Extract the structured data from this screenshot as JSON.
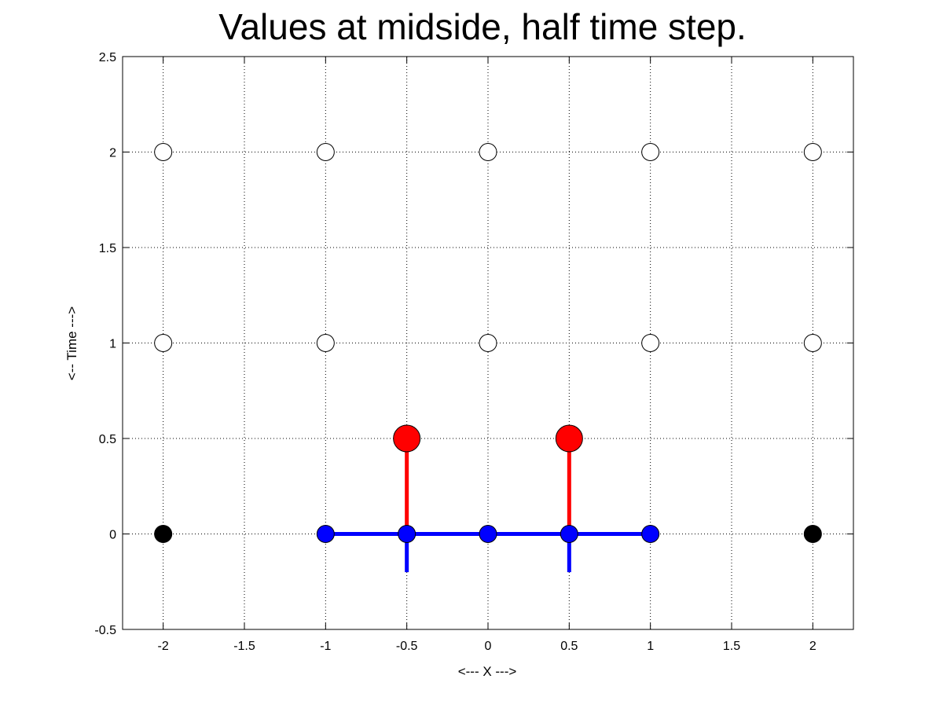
{
  "chart_data": {
    "type": "scatter",
    "title": "Values at midside, half time step.",
    "xlabel": "<--- X --->",
    "ylabel": "<-- Time --->",
    "xlim": [
      -2.25,
      2.25
    ],
    "ylim": [
      -0.5,
      2.5
    ],
    "grid": true,
    "x_ticks": [
      -2,
      -1.5,
      -1,
      -0.5,
      0,
      0.5,
      1,
      1.5,
      2
    ],
    "x_tick_labels": [
      "-2",
      "-1.5",
      "-1",
      "-0.5",
      "0",
      "0.5",
      "1",
      "1.5",
      "2"
    ],
    "y_ticks": [
      -0.5,
      0,
      0.5,
      1,
      1.5,
      2,
      2.5
    ],
    "y_tick_labels": [
      "-0.5",
      "0",
      "0.5",
      "1",
      "1.5",
      "2",
      "2.5"
    ],
    "series": [
      {
        "style": "open-circle",
        "fill": "#ffffff",
        "points": [
          [
            -2,
            1
          ],
          [
            -1,
            1
          ],
          [
            0,
            1
          ],
          [
            1,
            1
          ],
          [
            2,
            1
          ],
          [
            -2,
            2
          ],
          [
            -1,
            2
          ],
          [
            0,
            2
          ],
          [
            1,
            2
          ],
          [
            2,
            2
          ]
        ]
      },
      {
        "style": "filled-circle",
        "fill": "#000000",
        "points": [
          [
            -2,
            0
          ],
          [
            2,
            0
          ]
        ]
      },
      {
        "style": "line",
        "color": "#0000ff",
        "segments": [
          [
            [
              -1,
              0
            ],
            [
              1,
              0
            ]
          ],
          [
            [
              -0.5,
              -0.2
            ],
            [
              -0.5,
              0
            ]
          ],
          [
            [
              0.5,
              -0.2
            ],
            [
              0.5,
              0
            ]
          ]
        ]
      },
      {
        "style": "line",
        "color": "#ff0000",
        "segments": [
          [
            [
              -0.5,
              0
            ],
            [
              -0.5,
              0.5
            ]
          ],
          [
            [
              0.5,
              0
            ],
            [
              0.5,
              0.5
            ]
          ]
        ]
      },
      {
        "style": "filled-circle",
        "fill": "#0000ff",
        "points": [
          [
            -1,
            0
          ],
          [
            -0.5,
            0
          ],
          [
            0,
            0
          ],
          [
            0.5,
            0
          ],
          [
            1,
            0
          ]
        ]
      },
      {
        "style": "large-filled-circle",
        "fill": "#ff0000",
        "points": [
          [
            -0.5,
            0.5
          ],
          [
            0.5,
            0.5
          ]
        ]
      }
    ]
  }
}
